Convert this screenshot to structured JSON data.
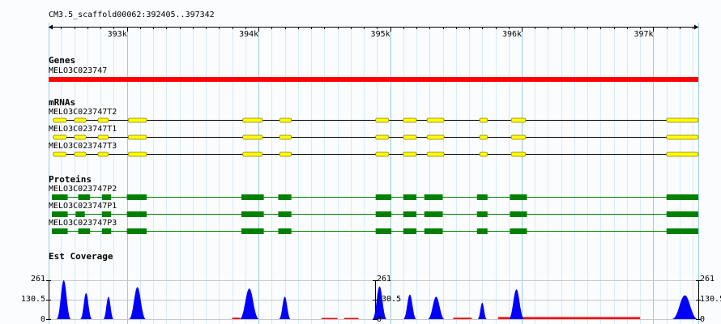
{
  "browser": {
    "location": "CM3.5_scaffold00062:392405..397342",
    "range": [
      392405,
      397342
    ],
    "ruler_ticks": [
      {
        "pos": 393000,
        "label": "393k"
      },
      {
        "pos": 394000,
        "label": "394k"
      },
      {
        "pos": 395000,
        "label": "395k"
      },
      {
        "pos": 396000,
        "label": "396k"
      },
      {
        "pos": 397000,
        "label": "397k"
      }
    ]
  },
  "colors": {
    "gene": "#ff0000",
    "mrna_fill": "#ffff00",
    "mrna_stroke": "#8c7a00",
    "protein": "#008000",
    "coverage_main": "#0000ff",
    "coverage_low": "#ff0000",
    "grid_major": "#9ccbe6",
    "grid_minor": "#d8ebf7"
  },
  "genes": {
    "title": "Genes",
    "items": [
      {
        "name": "MELO3C023747",
        "start": 392405,
        "end": 397342
      }
    ]
  },
  "mrnas": {
    "title": "mRNAs",
    "items": [
      {
        "name": "MELO3C023747T2",
        "exons": [
          [
            392440,
            392540
          ],
          [
            392600,
            392690
          ],
          [
            392780,
            392860
          ],
          [
            393010,
            393150
          ],
          [
            393880,
            394030
          ],
          [
            394160,
            394250
          ],
          [
            394890,
            394990
          ],
          [
            395100,
            395200
          ],
          [
            395280,
            395410
          ],
          [
            395680,
            395740
          ],
          [
            395920,
            396030
          ],
          [
            397100,
            397342
          ]
        ]
      },
      {
        "name": "MELO3C023747T1",
        "exons": [
          [
            392440,
            392540
          ],
          [
            392600,
            392690
          ],
          [
            392780,
            392860
          ],
          [
            393010,
            393150
          ],
          [
            393880,
            394030
          ],
          [
            394160,
            394250
          ],
          [
            394890,
            394990
          ],
          [
            395100,
            395200
          ],
          [
            395280,
            395410
          ],
          [
            395680,
            395740
          ],
          [
            395920,
            396030
          ],
          [
            397100,
            397342
          ]
        ]
      },
      {
        "name": "MELO3C023747T3",
        "exons": [
          [
            392440,
            392540
          ],
          [
            392600,
            392690
          ],
          [
            392780,
            392860
          ],
          [
            393010,
            393150
          ],
          [
            393880,
            394030
          ],
          [
            394160,
            394250
          ],
          [
            394890,
            394990
          ],
          [
            395100,
            395200
          ],
          [
            395280,
            395410
          ],
          [
            395680,
            395740
          ],
          [
            395920,
            396030
          ],
          [
            397100,
            397342
          ]
        ]
      }
    ]
  },
  "proteins": {
    "title": "Proteins",
    "items": [
      {
        "name": "MELO3C023747P2",
        "exons": [
          [
            392430,
            392550
          ],
          [
            392630,
            392720
          ],
          [
            392810,
            392880
          ],
          [
            393000,
            393150
          ],
          [
            393870,
            394040
          ],
          [
            394150,
            394250
          ],
          [
            394890,
            395010
          ],
          [
            395100,
            395200
          ],
          [
            395260,
            395400
          ],
          [
            395660,
            395740
          ],
          [
            395910,
            396040
          ],
          [
            397100,
            397342
          ]
        ]
      },
      {
        "name": "MELO3C023747P1",
        "exons": [
          [
            392430,
            392550
          ],
          [
            392610,
            392680
          ],
          [
            392810,
            392880
          ],
          [
            393000,
            393150
          ],
          [
            393870,
            394040
          ],
          [
            394150,
            394250
          ],
          [
            394890,
            395010
          ],
          [
            395100,
            395200
          ],
          [
            395260,
            395400
          ],
          [
            395660,
            395740
          ],
          [
            395910,
            396040
          ],
          [
            397100,
            397342
          ]
        ]
      },
      {
        "name": "MELO3C023747P3",
        "exons": [
          [
            392430,
            392550
          ],
          [
            392630,
            392720
          ],
          [
            392810,
            392880
          ],
          [
            393000,
            393150
          ],
          [
            393870,
            394040
          ],
          [
            394150,
            394250
          ],
          [
            394890,
            395010
          ],
          [
            395100,
            395200
          ],
          [
            395260,
            395400
          ],
          [
            395660,
            395740
          ],
          [
            395910,
            396040
          ],
          [
            397100,
            397342
          ]
        ]
      }
    ]
  },
  "est_coverage": {
    "title": "Est Coverage",
    "y_max": 261,
    "y_ticks": [
      {
        "value": 261,
        "label": "261"
      },
      {
        "value": 130.5,
        "label": "130.5"
      },
      {
        "value": 0,
        "label": "0"
      }
    ],
    "peaks": [
      {
        "center": 392520,
        "width": 110,
        "height": 261
      },
      {
        "center": 392690,
        "width": 90,
        "height": 175
      },
      {
        "center": 392860,
        "width": 80,
        "height": 150
      },
      {
        "center": 393080,
        "width": 130,
        "height": 215
      },
      {
        "center": 393930,
        "width": 150,
        "height": 205
      },
      {
        "center": 394200,
        "width": 90,
        "height": 150
      },
      {
        "center": 394920,
        "width": 110,
        "height": 220
      },
      {
        "center": 395150,
        "width": 100,
        "height": 165
      },
      {
        "center": 395350,
        "width": 130,
        "height": 150
      },
      {
        "center": 395700,
        "width": 70,
        "height": 110
      },
      {
        "center": 395960,
        "width": 120,
        "height": 200
      },
      {
        "center": 397240,
        "width": 200,
        "height": 160
      }
    ],
    "low_segments": [
      {
        "start": 393800,
        "end": 393860,
        "height": 10
      },
      {
        "start": 394480,
        "end": 394600,
        "height": 8
      },
      {
        "start": 394650,
        "end": 394760,
        "height": 8
      },
      {
        "start": 395480,
        "end": 395620,
        "height": 10
      },
      {
        "start": 395820,
        "end": 396900,
        "height": 14
      }
    ]
  }
}
